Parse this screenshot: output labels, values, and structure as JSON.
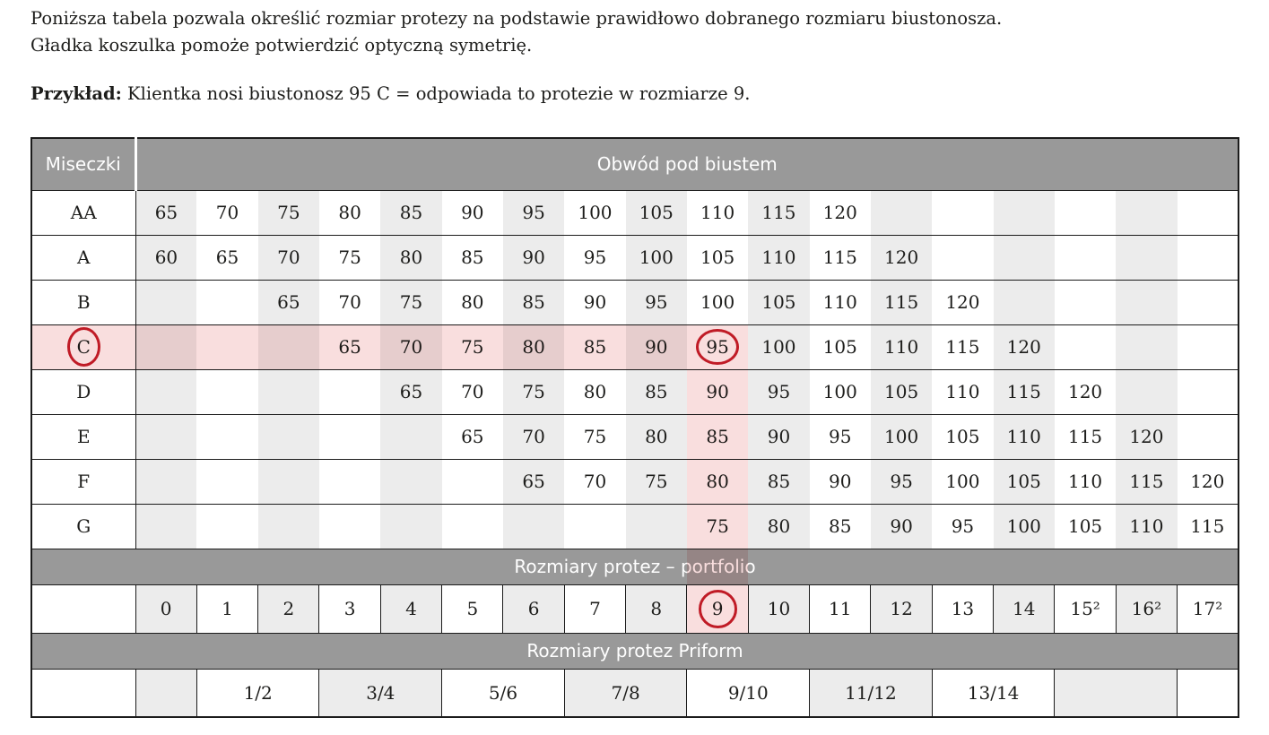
{
  "intro": {
    "line1": "Poniższa tabela pozwala określić rozmiar protezy na podstawie prawidłowo dobranego rozmiaru biustonosza.",
    "line2": "Gładka koszulka pomoże potwierdzić optyczną symetrię.",
    "example_label": "Przykład:",
    "example_text": "Klientka nosi biustonosz 95 C = odpowiada to protezie w rozmiarze 9."
  },
  "table": {
    "cups_header": "Miseczki",
    "underbust_header": "Obwód pod biustem",
    "cup_rows": [
      {
        "cup": "AA",
        "values": [
          "65",
          "70",
          "75",
          "80",
          "85",
          "90",
          "95",
          "100",
          "105",
          "110",
          "115",
          "120",
          "",
          "",
          "",
          "",
          "",
          ""
        ]
      },
      {
        "cup": "A",
        "values": [
          "60",
          "65",
          "70",
          "75",
          "80",
          "85",
          "90",
          "95",
          "100",
          "105",
          "110",
          "115",
          "120",
          "",
          "",
          "",
          "",
          ""
        ]
      },
      {
        "cup": "B",
        "values": [
          "",
          "",
          "65",
          "70",
          "75",
          "80",
          "85",
          "90",
          "95",
          "100",
          "105",
          "110",
          "115",
          "120",
          "",
          "",
          "",
          ""
        ]
      },
      {
        "cup": "C",
        "values": [
          "",
          "",
          "",
          "65",
          "70",
          "75",
          "80",
          "85",
          "90",
          "95",
          "100",
          "105",
          "110",
          "115",
          "120",
          "",
          "",
          ""
        ]
      },
      {
        "cup": "D",
        "values": [
          "",
          "",
          "",
          "",
          "65",
          "70",
          "75",
          "80",
          "85",
          "90",
          "95",
          "100",
          "105",
          "110",
          "115",
          "120",
          "",
          ""
        ]
      },
      {
        "cup": "E",
        "values": [
          "",
          "",
          "",
          "",
          "",
          "65",
          "70",
          "75",
          "80",
          "85",
          "90",
          "95",
          "100",
          "105",
          "110",
          "115",
          "120",
          ""
        ]
      },
      {
        "cup": "F",
        "values": [
          "",
          "",
          "",
          "",
          "",
          "",
          "65",
          "70",
          "75",
          "80",
          "85",
          "90",
          "95",
          "100",
          "105",
          "110",
          "115",
          "120"
        ]
      },
      {
        "cup": "G",
        "values": [
          "",
          "",
          "",
          "",
          "",
          "",
          "",
          "",
          "",
          "75",
          "80",
          "85",
          "90",
          "95",
          "100",
          "105",
          "110",
          "115"
        ]
      }
    ],
    "portfolio_title": "Rozmiary protez – portfolio",
    "sizes": [
      "0",
      "1",
      "2",
      "3",
      "4",
      "5",
      "6",
      "7",
      "8",
      "9",
      "10",
      "11",
      "12",
      "13",
      "14",
      "15²",
      "16²",
      "17²"
    ],
    "priform_title": "Rozmiary protez Priform",
    "priform_groups": [
      {
        "label": "",
        "span": 1
      },
      {
        "label": "1/2",
        "span": 2
      },
      {
        "label": "3/4",
        "span": 2
      },
      {
        "label": "5/6",
        "span": 2
      },
      {
        "label": "7/8",
        "span": 2
      },
      {
        "label": "9/10",
        "span": 2
      },
      {
        "label": "11/12",
        "span": 2
      },
      {
        "label": "13/14",
        "span": 2
      },
      {
        "label": "",
        "span": 2
      },
      {
        "label": "",
        "span": 1
      }
    ],
    "highlight": {
      "row_index": 3,
      "col_index": 9,
      "example_cup": "C",
      "example_underbust": "95",
      "example_size": "9"
    }
  },
  "colors": {
    "page_bg": "#ffffff",
    "bar_gray": "#999999",
    "stripe": "#ececec",
    "border": "#1b1b1b",
    "text": "#1d1d1b",
    "pink": "#f9dede",
    "red": "#c51f2b"
  }
}
